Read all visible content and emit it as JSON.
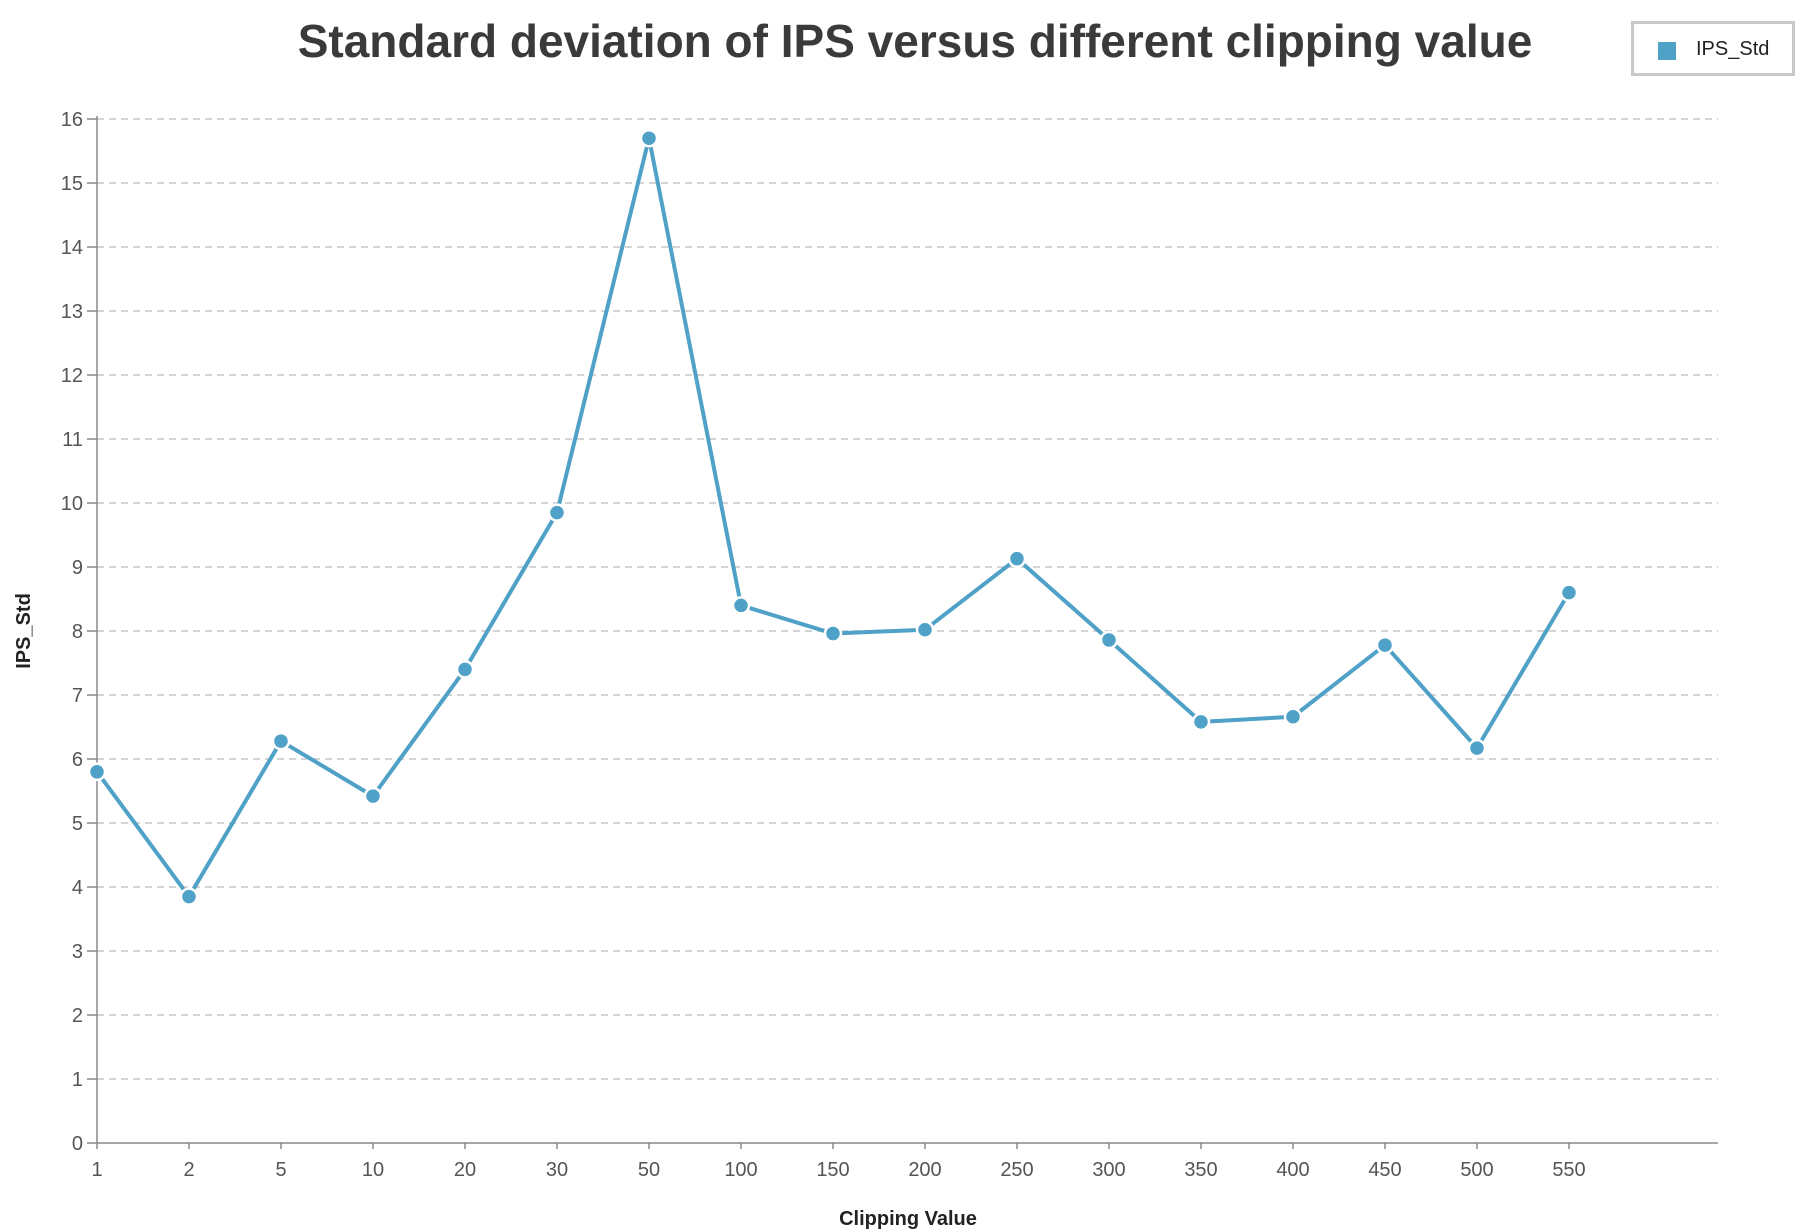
{
  "chart_data": {
    "type": "line",
    "title": "Standard deviation of IPS versus different clipping value",
    "xlabel": "Clipping Value",
    "ylabel": "IPS_Std",
    "categories": [
      "1",
      "2",
      "5",
      "10",
      "20",
      "30",
      "50",
      "100",
      "150",
      "200",
      "250",
      "300",
      "350",
      "400",
      "450",
      "500",
      "550"
    ],
    "series": [
      {
        "name": "IPS_Std",
        "values": [
          5.8,
          3.85,
          6.28,
          5.42,
          7.4,
          9.85,
          15.7,
          8.4,
          7.96,
          8.02,
          9.13,
          7.86,
          6.58,
          6.66,
          7.78,
          6.17,
          8.6
        ]
      }
    ],
    "ylim": [
      0,
      16
    ],
    "yticks": [
      "0",
      "1",
      "2",
      "3",
      "4",
      "5",
      "6",
      "7",
      "8",
      "9",
      "10",
      "11",
      "12",
      "13",
      "14",
      "15",
      "16"
    ],
    "grid": "horizontal-dashed",
    "legend_position": "top-right",
    "line_color": "#4fa1c7"
  }
}
